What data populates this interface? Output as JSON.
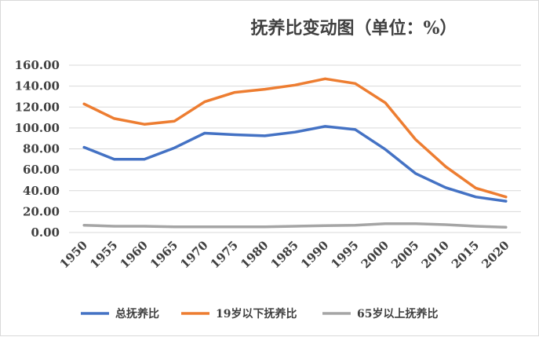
{
  "chart_data": {
    "type": "line",
    "title": "抚养比变动图（单位：%）",
    "categories": [
      "1950",
      "1955",
      "1960",
      "1965",
      "1970",
      "1975",
      "1980",
      "1985",
      "1990",
      "1995",
      "2000",
      "2005",
      "2010",
      "2015",
      "2020"
    ],
    "y_tick_labels": [
      "0.00",
      "20.00",
      "40.00",
      "60.00",
      "80.00",
      "100.00",
      "120.00",
      "140.00",
      "160.00"
    ],
    "ylim": [
      0,
      160
    ],
    "grid": true,
    "legend_position": "bottom",
    "series": [
      {
        "name": "总抚养比",
        "color": "#4472c4",
        "values": [
          81.5,
          70.0,
          70.0,
          81.0,
          95.0,
          93.5,
          92.5,
          96.0,
          101.5,
          98.5,
          79.5,
          56.5,
          43.0,
          34.0,
          30.0
        ]
      },
      {
        "name": "19岁以下抚养比",
        "color": "#ed7d31",
        "values": [
          123.0,
          109.0,
          103.5,
          106.5,
          125.0,
          134.0,
          137.0,
          141.0,
          147.0,
          142.5,
          124.0,
          89.0,
          63.0,
          42.5,
          34.0
        ]
      },
      {
        "name": "65岁以上抚养比",
        "color": "#a5a5a5",
        "values": [
          7.0,
          6.0,
          6.0,
          5.5,
          5.5,
          5.5,
          5.5,
          6.0,
          6.5,
          7.0,
          8.5,
          8.5,
          7.5,
          6.0,
          5.0
        ]
      }
    ]
  }
}
